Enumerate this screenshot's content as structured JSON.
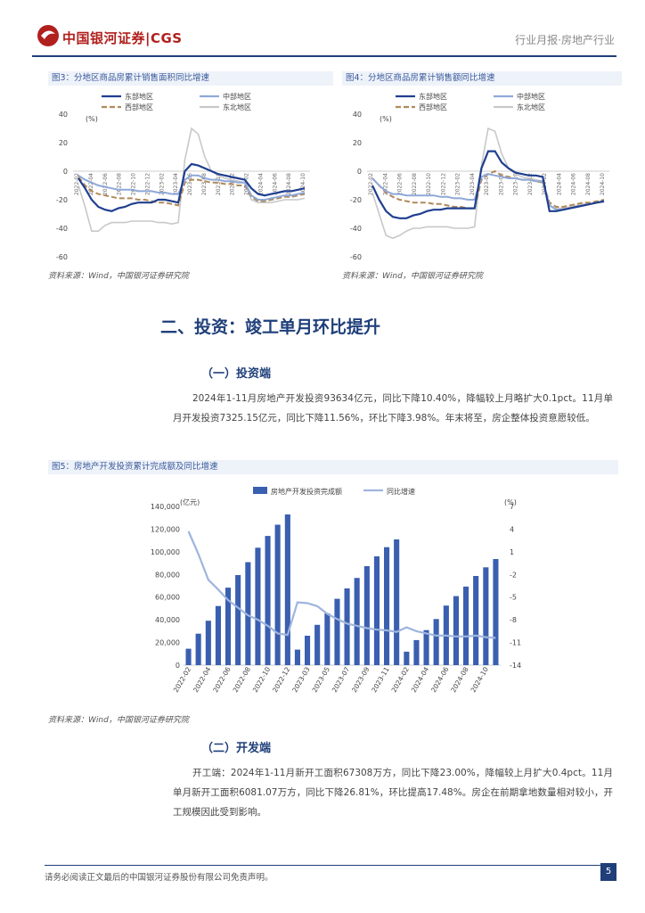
{
  "header": {
    "logo_text": "中国银河证券|CGS",
    "section": "行业月报·房地产行业"
  },
  "figures": {
    "fig3": {
      "title": "图3：分地区商品房累计销售面积同比增速",
      "source": "资料来源：Wind，中国银河证券研究院"
    },
    "fig4": {
      "title": "图4：分地区商品房累计销售额同比增速",
      "source": "资料来源：Wind，中国银河证券研究院"
    },
    "fig5": {
      "title": "图5：房地产开发投资累计完成额及同比增速",
      "source": "资料来源：Wind，中国银河证券研究院"
    }
  },
  "section2": {
    "title": "二、投资：竣工单月环比提升",
    "sub1": {
      "title": "（一）投资端",
      "para": "2024年1-11月房地产开发投资93634亿元，同比下降10.40%，降幅较上月略扩大0.1pct。11月单月开发投资7325.15亿元，同比下降11.56%，环比下降3.98%。年末将至，房企整体投资意愿较低。"
    },
    "sub2": {
      "title": "（二）开发端",
      "para": "开工端：2024年1-11月新开工面积67308万方，同比下降23.00%，降幅较上月扩大0.4pct。11月单月新开工面积6081.07万方，同比下降26.81%，环比提高17.48%。房企在前期拿地数量相对较小，开工规模因此受到影响。"
    }
  },
  "footer": {
    "disclaimer": "请务必阅读正文最后的中国银河证券股份有限公司免责声明。",
    "page": "5"
  },
  "colors": {
    "east": "#1f3f8f",
    "central": "#8fa8d8",
    "west": "#b08a5a",
    "northeast": "#c8c8c8",
    "bar": "#3a5fb0",
    "line": "#9fb5de"
  },
  "chart_data": [
    {
      "type": "line",
      "title": "分地区商品房累计销售面积同比增速",
      "ylabel": "(%)",
      "ylim": [
        -60,
        40
      ],
      "yticks": [
        40,
        20,
        0,
        -20,
        -40,
        -60
      ],
      "xticks": [
        "2022-02",
        "2022-04",
        "2022-06",
        "2022-08",
        "2022-10",
        "2022-12",
        "2023-02",
        "2023-04",
        "2023-06",
        "2023-08",
        "2023-10",
        "2023-12",
        "2024-02",
        "2024-04",
        "2024-06",
        "2024-08",
        "2024-10"
      ],
      "series": [
        {
          "name": "东部地区",
          "values": [
            -5,
            -12,
            -20,
            -25,
            -27,
            -28,
            -26,
            -25,
            -23,
            -22,
            -22,
            -22,
            -20,
            -20,
            -21,
            -22,
            0,
            5,
            4,
            2,
            0,
            -2,
            -3,
            -4,
            -5,
            -6,
            -12,
            -16,
            -17,
            -16,
            -15,
            -14,
            -14,
            -13,
            -12
          ]
        },
        {
          "name": "中部地区",
          "values": [
            -3,
            -6,
            -8,
            -10,
            -11,
            -12,
            -13,
            -13,
            -13,
            -14,
            -14,
            -14,
            -15,
            -15,
            -16,
            -16,
            -6,
            -3,
            -3,
            -5,
            -6,
            -6,
            -7,
            -7,
            -8,
            -8,
            -17,
            -20,
            -20,
            -19,
            -18,
            -17,
            -17,
            -16,
            -15
          ]
        },
        {
          "name": "西部地区",
          "values": [
            -4,
            -10,
            -14,
            -16,
            -17,
            -18,
            -19,
            -19,
            -19,
            -20,
            -20,
            -21,
            -22,
            -22,
            -23,
            -24,
            -8,
            -6,
            -6,
            -7,
            -8,
            -8,
            -9,
            -9,
            -10,
            -10,
            -18,
            -21,
            -21,
            -20,
            -19,
            -18,
            -18,
            -17,
            -16
          ]
        },
        {
          "name": "东北地区",
          "values": [
            -10,
            -25,
            -42,
            -42,
            -38,
            -36,
            -36,
            -36,
            -35,
            -35,
            -35,
            -35,
            -36,
            -36,
            -37,
            -36,
            8,
            30,
            26,
            10,
            0,
            -3,
            -5,
            -6,
            -7,
            -8,
            -20,
            -22,
            -22,
            -22,
            -21,
            -20,
            -20,
            -20,
            -19
          ]
        }
      ]
    },
    {
      "type": "line",
      "title": "分地区商品房累计销售额同比增速",
      "ylabel": "(%)",
      "ylim": [
        -60,
        40
      ],
      "yticks": [
        40,
        20,
        0,
        -20,
        -40,
        -60
      ],
      "xticks": [
        "2022-02",
        "2022-04",
        "2022-06",
        "2022-08",
        "2022-10",
        "2022-12",
        "2023-02",
        "2023-04",
        "2023-06",
        "2023-08",
        "2023-10",
        "2023-12",
        "2024-02",
        "2024-04",
        "2024-06",
        "2024-08",
        "2024-10"
      ],
      "series": [
        {
          "name": "东部地区",
          "values": [
            -10,
            -20,
            -28,
            -32,
            -33,
            -33,
            -31,
            -30,
            -28,
            -27,
            -27,
            -26,
            -26,
            -26,
            -26,
            -26,
            2,
            14,
            14,
            6,
            2,
            -1,
            -2,
            -3,
            -3,
            -4,
            -28,
            -28,
            -27,
            -26,
            -25,
            -24,
            -23,
            -22,
            -21
          ]
        },
        {
          "name": "中部地区",
          "values": [
            -5,
            -10,
            -14,
            -16,
            -16,
            -17,
            -17,
            -17,
            -17,
            -17,
            -18,
            -18,
            -19,
            -19,
            -20,
            -20,
            -4,
            -2,
            -3,
            -4,
            -5,
            -5,
            -6,
            -6,
            -7,
            -7,
            -24,
            -27,
            -27,
            -26,
            -25,
            -24,
            -23,
            -22,
            -21
          ]
        },
        {
          "name": "西部地区",
          "values": [
            -5,
            -10,
            -15,
            -18,
            -20,
            -21,
            -22,
            -22,
            -22,
            -23,
            -23,
            -24,
            -25,
            -25,
            -26,
            -26,
            -6,
            -2,
            0,
            -3,
            -4,
            -5,
            -6,
            -6,
            -7,
            -8,
            -22,
            -25,
            -25,
            -24,
            -23,
            -22,
            -22,
            -21,
            -20
          ]
        },
        {
          "name": "东北地区",
          "values": [
            -15,
            -30,
            -45,
            -47,
            -45,
            -42,
            -40,
            -40,
            -39,
            -39,
            -39,
            -39,
            -40,
            -40,
            -40,
            -39,
            4,
            30,
            28,
            12,
            2,
            -2,
            -4,
            -5,
            -6,
            -7,
            -24,
            -26,
            -26,
            -25,
            -24,
            -23,
            -23,
            -22,
            -22
          ]
        }
      ]
    },
    {
      "type": "bar+line",
      "title": "房地产开发投资累计完成额及同比增速",
      "ylabel_left": "(亿元)",
      "ylabel_right": "(%)",
      "ylim_left": [
        0,
        140000
      ],
      "ylim_right": [
        -14,
        7
      ],
      "yticks_left": [
        "140,000",
        "120,000",
        "100,000",
        "80,000",
        "60,000",
        "40,000",
        "20,000",
        "0"
      ],
      "yticks_right": [
        "7",
        "4",
        "1",
        "-2",
        "-5",
        "-8",
        "-11",
        "-14"
      ],
      "xticks": [
        "2022-02",
        "2022-04",
        "2022-06",
        "2022-08",
        "2022-10",
        "2022-12",
        "2023-03",
        "2023-05",
        "2023-07",
        "2023-09",
        "2023-11",
        "2024-02",
        "2024-04",
        "2024-06",
        "2024-08",
        "2024-10"
      ],
      "categories": [
        "2022-02",
        "2022-03",
        "2022-04",
        "2022-05",
        "2022-06",
        "2022-07",
        "2022-08",
        "2022-09",
        "2022-10",
        "2022-11",
        "2022-12",
        "2023-02",
        "2023-03",
        "2023-04",
        "2023-05",
        "2023-06",
        "2023-07",
        "2023-08",
        "2023-09",
        "2023-10",
        "2023-11",
        "2023-12",
        "2024-02",
        "2024-03",
        "2024-04",
        "2024-05",
        "2024-06",
        "2024-07",
        "2024-08",
        "2024-09",
        "2024-10",
        "2024-11"
      ],
      "series": [
        {
          "name": "房地产开发投资完成额",
          "type": "bar",
          "values": [
            14499,
            27765,
            39154,
            52134,
            68314,
            79462,
            90809,
            103559,
            113945,
            123863,
            132895,
            13669,
            25974,
            35514,
            45701,
            58550,
            67717,
            76900,
            87269,
            95922,
            104045,
            110913,
            11842,
            22082,
            30928,
            40632,
            52529,
            60877,
            69284,
            78680,
            86309,
            93634
          ]
        },
        {
          "name": "同比增速",
          "type": "line",
          "values": [
            3.7,
            0.7,
            -2.7,
            -4.0,
            -5.4,
            -6.4,
            -7.4,
            -8.0,
            -8.8,
            -9.8,
            -10.0,
            -5.7,
            -5.8,
            -6.2,
            -7.2,
            -7.9,
            -8.5,
            -8.8,
            -9.1,
            -9.3,
            -9.4,
            -9.6,
            -9.0,
            -9.5,
            -9.8,
            -10.1,
            -10.1,
            -10.2,
            -10.2,
            -10.1,
            -10.3,
            -10.4
          ]
        }
      ]
    }
  ]
}
